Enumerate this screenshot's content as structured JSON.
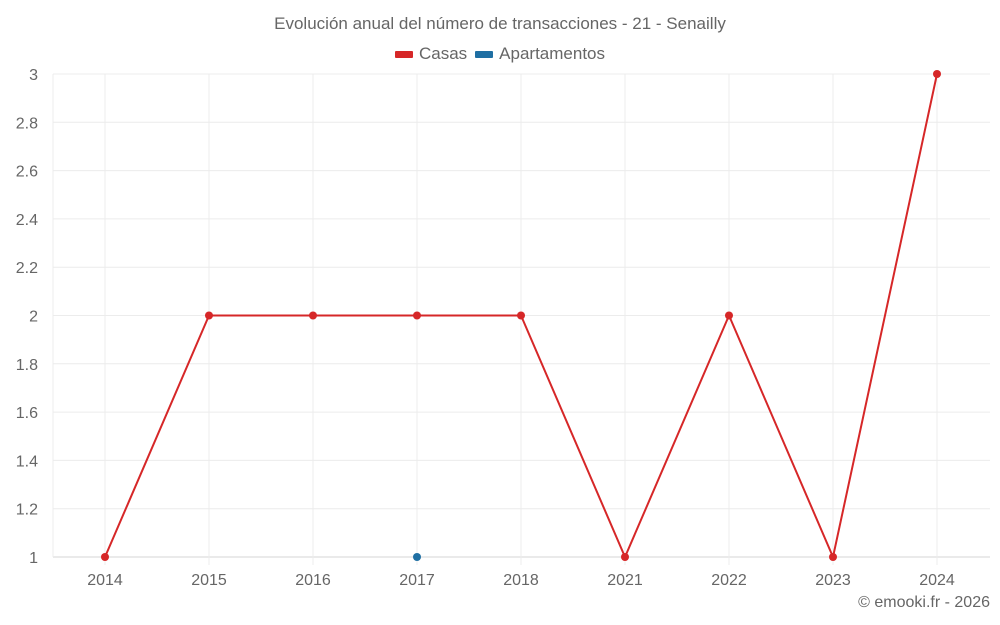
{
  "chart_data": {
    "type": "line",
    "title": "Evolución anual del número de transacciones - 21 - Senailly",
    "categories": [
      "2014",
      "2015",
      "2016",
      "2017",
      "2018",
      "2021",
      "2022",
      "2023",
      "2024"
    ],
    "series": [
      {
        "name": "Casas",
        "color": "#d62728",
        "values": [
          1,
          2,
          2,
          2,
          2,
          1,
          2,
          1,
          3
        ]
      },
      {
        "name": "Apartamentos",
        "color": "#1f6fa3",
        "values": [
          null,
          null,
          null,
          1,
          null,
          null,
          null,
          null,
          null
        ]
      }
    ],
    "xlabel": "",
    "ylabel": "",
    "ylim": [
      1,
      3
    ],
    "yticks": [
      "1",
      "1.2",
      "1.4",
      "1.6",
      "1.8",
      "2",
      "2.2",
      "2.4",
      "2.6",
      "2.8",
      "3"
    ],
    "grid": true,
    "legend_position": "top"
  },
  "legend": {
    "items": [
      {
        "label": "Casas",
        "color": "#d62728"
      },
      {
        "label": "Apartamentos",
        "color": "#1f6fa3"
      }
    ]
  },
  "credit": "© emooki.fr - 2026"
}
